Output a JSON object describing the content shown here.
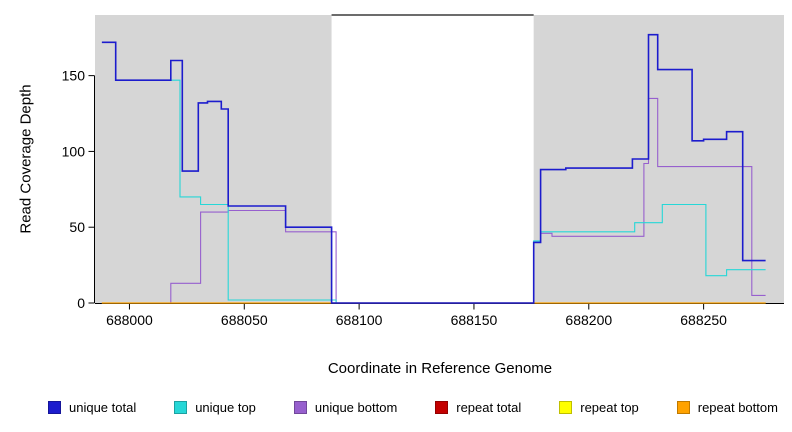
{
  "chart_data": {
    "type": "line",
    "step": true,
    "title": "",
    "xlabel": "Coordinate in Reference Genome",
    "ylabel": "Read Coverage Depth",
    "xlim": [
      687985,
      688285
    ],
    "ylim": [
      0,
      190
    ],
    "xticks": [
      688000,
      688050,
      688100,
      688150,
      688200,
      688250
    ],
    "yticks": [
      0,
      50,
      100,
      150
    ],
    "grid": false,
    "legend_position": "bottom",
    "panel_color": "#d6d6d6",
    "background_regions": [
      {
        "x0": 687985,
        "x1": 688088
      },
      {
        "x0": 688176,
        "x1": 688285
      }
    ],
    "gap_top_border": {
      "x0": 688088,
      "x1": 688176,
      "color": "#3c3c3c"
    },
    "series": [
      {
        "name": "unique total",
        "color": "#1c1ccd",
        "lw": 1.6,
        "points": [
          [
            687988,
            172
          ],
          [
            687994,
            147
          ],
          [
            688018,
            160
          ],
          [
            688023,
            87
          ],
          [
            688030,
            132
          ],
          [
            688034,
            133
          ],
          [
            688040,
            128
          ],
          [
            688043,
            64
          ],
          [
            688068,
            50
          ],
          [
            688088,
            0
          ],
          [
            688176,
            40
          ],
          [
            688179,
            88
          ],
          [
            688190,
            89
          ],
          [
            688219,
            95
          ],
          [
            688226,
            177
          ],
          [
            688230,
            154
          ],
          [
            688245,
            107
          ],
          [
            688250,
            108
          ],
          [
            688260,
            113
          ],
          [
            688267,
            28
          ],
          [
            688277,
            28
          ]
        ]
      },
      {
        "name": "unique top",
        "color": "#26d7d7",
        "lw": 1.1,
        "points": [
          [
            687988,
            172
          ],
          [
            687994,
            147
          ],
          [
            688022,
            70
          ],
          [
            688031,
            65
          ],
          [
            688043,
            2
          ],
          [
            688090,
            0
          ],
          [
            688176,
            41
          ],
          [
            688179,
            47
          ],
          [
            688220,
            53
          ],
          [
            688232,
            65
          ],
          [
            688251,
            18
          ],
          [
            688260,
            22
          ],
          [
            688277,
            22
          ]
        ]
      },
      {
        "name": "unique bottom",
        "color": "#9760ce",
        "lw": 1.1,
        "points": [
          [
            687988,
            0
          ],
          [
            688018,
            13
          ],
          [
            688031,
            60
          ],
          [
            688043,
            61
          ],
          [
            688068,
            47
          ],
          [
            688090,
            0
          ],
          [
            688176,
            40
          ],
          [
            688179,
            46
          ],
          [
            688184,
            44
          ],
          [
            688222,
            44
          ],
          [
            688224,
            92
          ],
          [
            688226,
            135
          ],
          [
            688230,
            90
          ],
          [
            688269,
            90
          ],
          [
            688271,
            5
          ],
          [
            688277,
            5
          ]
        ]
      },
      {
        "name": "repeat total",
        "color": "#c40000",
        "lw": 1.1,
        "points": [
          [
            687988,
            0
          ],
          [
            688277,
            0
          ]
        ]
      },
      {
        "name": "repeat top",
        "color": "#ffff00",
        "lw": 1.1,
        "points": [
          [
            687988,
            0
          ],
          [
            688277,
            0
          ]
        ]
      },
      {
        "name": "repeat bottom",
        "color": "#ffa200",
        "lw": 1.3,
        "points": [
          [
            687988,
            0
          ],
          [
            688277,
            0
          ]
        ]
      }
    ],
    "draw_order": [
      2,
      1,
      3,
      4,
      5,
      0
    ]
  }
}
